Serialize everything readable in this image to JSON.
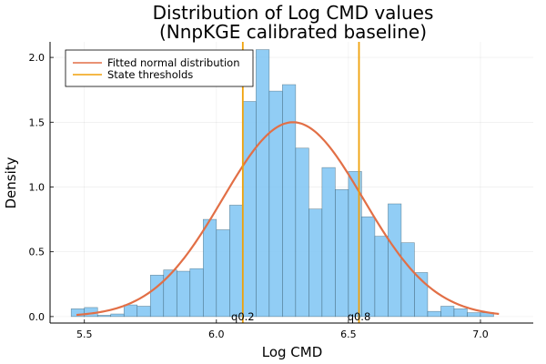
{
  "chart_data": {
    "type": "bar",
    "title": [
      "Distribution of Log CMD values",
      "(NnpKGE calibrated baseline)"
    ],
    "xlabel": "Log CMD",
    "ylabel": "Density",
    "xlim": [
      5.37,
      7.2
    ],
    "ylim": [
      -0.05,
      2.12
    ],
    "xticks": [
      "5.5",
      "6.0",
      "6.5",
      "7.0"
    ],
    "yticks": [
      "0.0",
      "0.5",
      "1.0",
      "1.5",
      "2.0"
    ],
    "grid": true,
    "legend_position": "top-left",
    "histogram": {
      "name": "",
      "color": "#7ec4f3",
      "edge_color": "#335566",
      "bin_start": 5.45,
      "bin_width": 0.05,
      "densities": [
        0.06,
        0.07,
        0.01,
        0.02,
        0.09,
        0.08,
        0.32,
        0.36,
        0.35,
        0.37,
        0.75,
        0.67,
        0.86,
        1.66,
        2.06,
        1.74,
        1.79,
        1.3,
        0.83,
        1.15,
        0.98,
        1.12,
        0.77,
        0.62,
        0.87,
        0.57,
        0.34,
        0.04,
        0.08,
        0.06,
        0.03,
        0.03
      ]
    },
    "fitted_normal": {
      "name": "Fitted normal distribution",
      "color": "#e26f46",
      "mean": 6.29,
      "sd": 0.266,
      "x_range": [
        5.47,
        7.07
      ]
    },
    "thresholds": {
      "name": "State thresholds",
      "color": "#f0a10a",
      "lines": [
        {
          "x": 6.1,
          "label": "q0.2"
        },
        {
          "x": 6.54,
          "label": "q0.8"
        }
      ]
    }
  }
}
